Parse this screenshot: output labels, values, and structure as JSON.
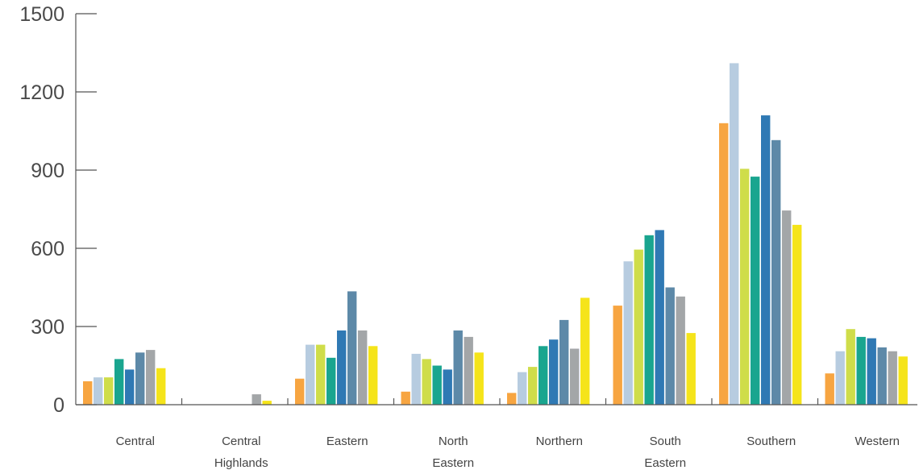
{
  "chart_data": {
    "type": "bar",
    "title": "",
    "xlabel": "",
    "ylabel": "",
    "ylim": [
      0,
      1500
    ],
    "y_ticks": [
      "0",
      "300",
      "600",
      "900",
      "1200",
      "1500"
    ],
    "grid": false,
    "legend": "none",
    "categories": [
      [
        "Central"
      ],
      [
        "Central",
        "Highlands"
      ],
      [
        "Eastern"
      ],
      [
        "North",
        "Eastern"
      ],
      [
        "Northern"
      ],
      [
        "South",
        "Eastern"
      ],
      [
        "Southern"
      ],
      [
        "Western"
      ]
    ],
    "series": [
      {
        "color": "#F7A541",
        "values": [
          90,
          0,
          100,
          50,
          45,
          380,
          1080,
          120
        ]
      },
      {
        "color": "#B7CCE0",
        "values": [
          105,
          0,
          230,
          195,
          125,
          550,
          1310,
          205
        ]
      },
      {
        "color": "#CFDD4A",
        "values": [
          105,
          0,
          230,
          175,
          145,
          595,
          905,
          290
        ]
      },
      {
        "color": "#19A58F",
        "values": [
          175,
          0,
          180,
          150,
          225,
          650,
          875,
          260
        ]
      },
      {
        "color": "#2F79B4",
        "values": [
          135,
          0,
          285,
          135,
          250,
          670,
          1110,
          255
        ]
      },
      {
        "color": "#5D89A8",
        "values": [
          200,
          0,
          435,
          285,
          325,
          450,
          1015,
          220
        ]
      },
      {
        "color": "#A3A6A8",
        "values": [
          210,
          40,
          285,
          260,
          215,
          415,
          745,
          205
        ]
      },
      {
        "color": "#F5E41A",
        "values": [
          140,
          15,
          225,
          200,
          410,
          275,
          690,
          185
        ]
      }
    ]
  }
}
